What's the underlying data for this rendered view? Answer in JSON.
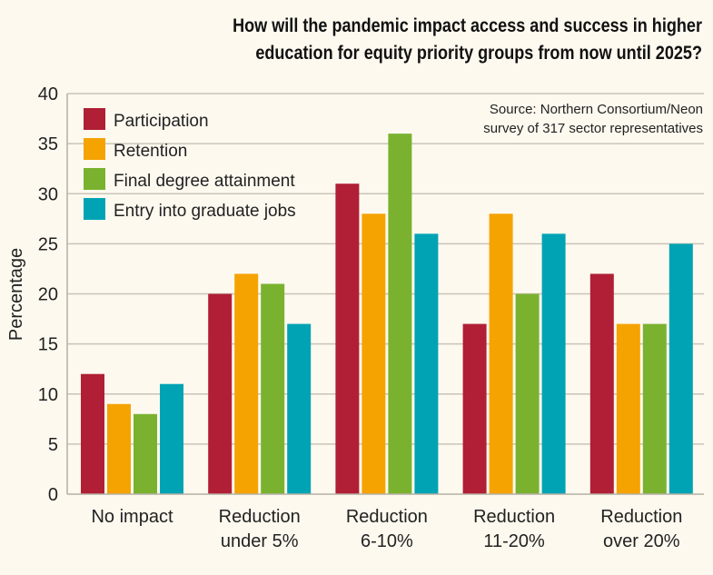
{
  "chart_data": {
    "type": "bar",
    "title": "How will the pandemic impact access and success in higher education for equity priority groups from now until 2025?",
    "title_lines": [
      "How will the pandemic impact access and success in higher",
      "education for equity priority groups from now until 2025?"
    ],
    "source_lines": [
      "Source: Northern Consortium/Neon",
      "survey of 317 sector representatives"
    ],
    "xlabel": "",
    "ylabel": "Percentage",
    "ylim": [
      0,
      40
    ],
    "yticks": [
      0,
      5,
      10,
      15,
      20,
      25,
      30,
      35,
      40
    ],
    "grid": true,
    "legend_position": "top-left",
    "categories": [
      [
        "No impact"
      ],
      [
        "Reduction",
        "under 5%"
      ],
      [
        "Reduction",
        "6-10%"
      ],
      [
        "Reduction",
        "11-20%"
      ],
      [
        "Reduction",
        "over 20%"
      ]
    ],
    "series": [
      {
        "name": "Participation",
        "color": "#b01f35",
        "values": [
          12,
          20,
          31,
          17,
          22
        ]
      },
      {
        "name": "Retention",
        "color": "#f5a300",
        "values": [
          9,
          22,
          28,
          28,
          17
        ]
      },
      {
        "name": "Final degree attainment",
        "color": "#7ab230",
        "values": [
          8,
          21,
          36,
          20,
          17
        ]
      },
      {
        "name": "Entry into graduate jobs",
        "color": "#00a3b4",
        "values": [
          11,
          17,
          26,
          26,
          25
        ]
      }
    ]
  }
}
